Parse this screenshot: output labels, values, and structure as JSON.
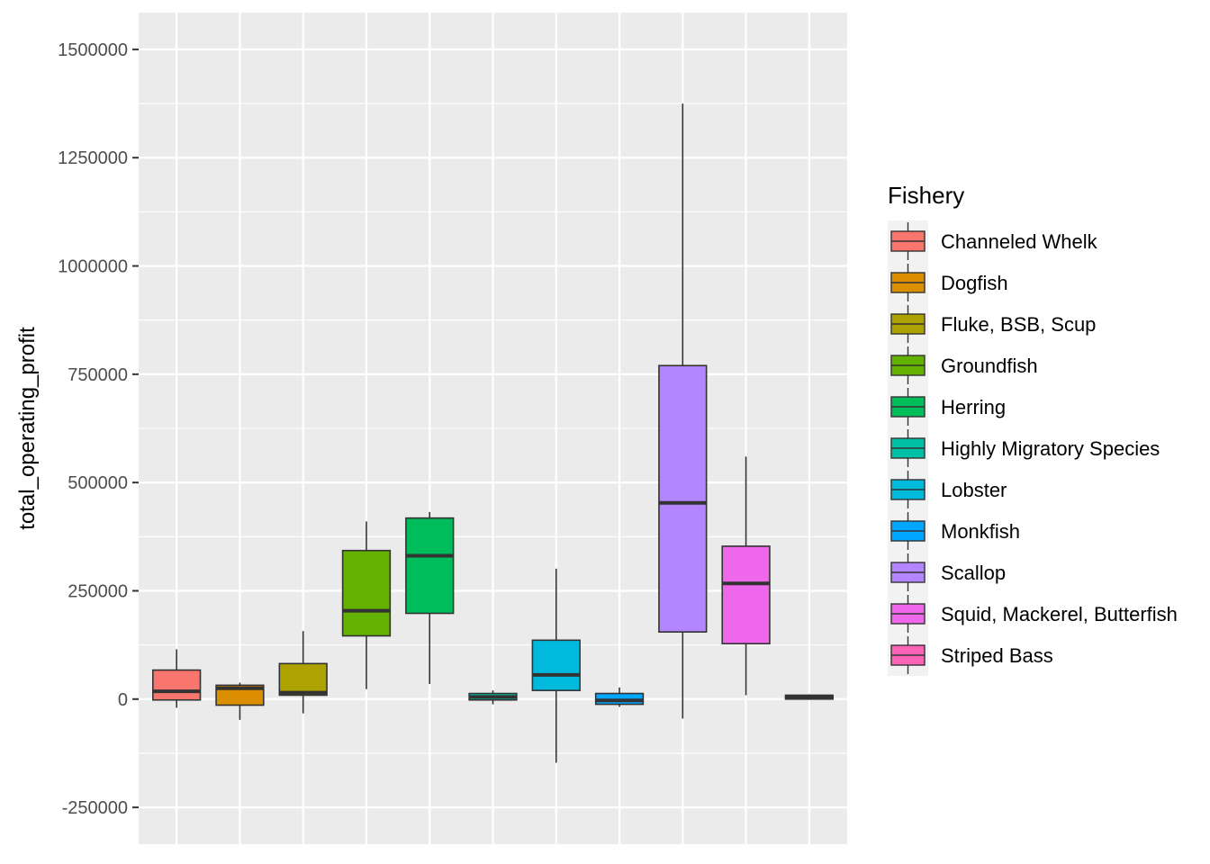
{
  "chart_data": {
    "type": "boxplot",
    "ylabel": "total_operating_profit",
    "xlabel": "",
    "ylim": [
      -335000,
      1585000
    ],
    "yticks": [
      -250000,
      0,
      250000,
      500000,
      750000,
      1000000,
      1250000,
      1500000
    ],
    "ytick_labels": [
      "-250000",
      "0",
      "250000",
      "500000",
      "750000",
      "1000000",
      "1250000",
      "1500000"
    ],
    "grid": true,
    "legend_title": "Fishery",
    "legend_position": "right",
    "series": [
      {
        "name": "Channeled Whelk",
        "color": "#F8766D",
        "whisker_low": -20000,
        "q1": -2000,
        "median": 18000,
        "q3": 67000,
        "whisker_high": 115000
      },
      {
        "name": "Dogfish",
        "color": "#DB8E00",
        "whisker_low": -48000,
        "q1": -14000,
        "median": 25000,
        "q3": 32000,
        "whisker_high": 38000
      },
      {
        "name": "Fluke, BSB, Scup",
        "color": "#AEA200",
        "whisker_low": -33000,
        "q1": 9000,
        "median": 15000,
        "q3": 82000,
        "whisker_high": 157000
      },
      {
        "name": "Groundfish",
        "color": "#64B200",
        "whisker_low": 23000,
        "q1": 146000,
        "median": 204000,
        "q3": 343000,
        "whisker_high": 410000
      },
      {
        "name": "Herring",
        "color": "#00BD5C",
        "whisker_low": 35000,
        "q1": 198000,
        "median": 331000,
        "q3": 418000,
        "whisker_high": 432000
      },
      {
        "name": "Highly Migratory Species",
        "color": "#00C1A7",
        "whisker_low": -12000,
        "q1": -2000,
        "median": 5000,
        "q3": 13000,
        "whisker_high": 20000
      },
      {
        "name": "Lobster",
        "color": "#00BADE",
        "whisker_low": -147000,
        "q1": 20000,
        "median": 56000,
        "q3": 136000,
        "whisker_high": 301000
      },
      {
        "name": "Monkfish",
        "color": "#00A6FF",
        "whisker_low": -18000,
        "q1": -12000,
        "median": -3000,
        "q3": 13000,
        "whisker_high": 27000
      },
      {
        "name": "Scallop",
        "color": "#B385FF",
        "whisker_low": -45000,
        "q1": 155000,
        "median": 453000,
        "q3": 770000,
        "whisker_high": 1375000
      },
      {
        "name": "Squid, Mackerel, Butterfish",
        "color": "#EF67EB",
        "whisker_low": 9000,
        "q1": 128000,
        "median": 267000,
        "q3": 353000,
        "whisker_high": 560000
      },
      {
        "name": "Striped Bass",
        "color": "#FF63B6",
        "whisker_low": -1000,
        "q1": 0,
        "median": 4000,
        "q3": 9000,
        "whisker_high": 11000
      }
    ]
  }
}
